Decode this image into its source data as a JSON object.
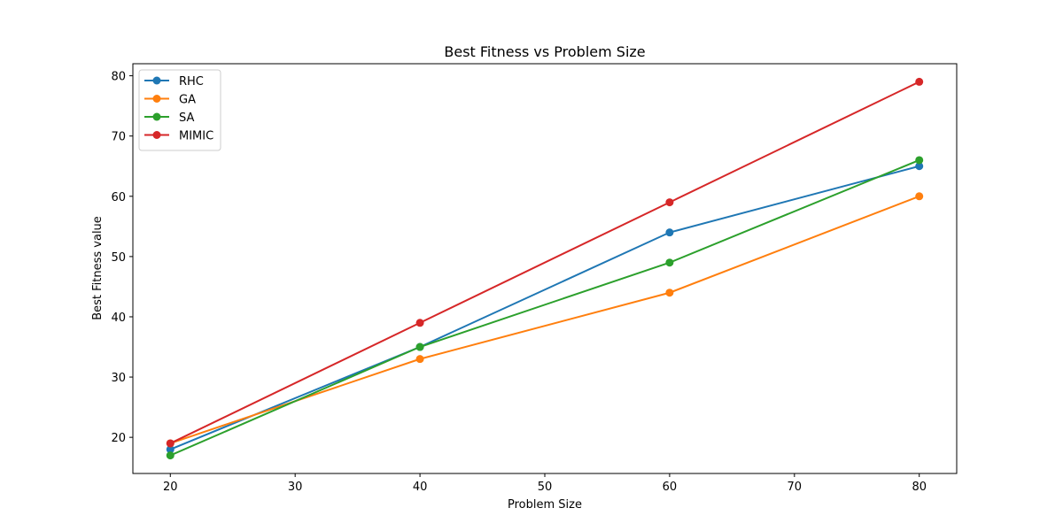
{
  "chart_data": {
    "type": "line",
    "title": "Best Fitness vs Problem Size",
    "xlabel": "Problem Size",
    "ylabel": "Best Fitness value",
    "x": [
      20,
      40,
      60,
      80
    ],
    "xlim": [
      17,
      83
    ],
    "ylim": [
      14,
      82
    ],
    "xticks": [
      20,
      30,
      40,
      50,
      60,
      70,
      80
    ],
    "yticks": [
      20,
      30,
      40,
      50,
      60,
      70,
      80
    ],
    "grid": false,
    "legend_position": "top-left",
    "series": [
      {
        "name": "RHC",
        "color": "#1f77b4",
        "values": [
          18,
          35,
          54,
          65
        ]
      },
      {
        "name": "GA",
        "color": "#ff7f0e",
        "values": [
          19,
          33,
          44,
          60
        ]
      },
      {
        "name": "SA",
        "color": "#2ca02c",
        "values": [
          17,
          35,
          49,
          66
        ]
      },
      {
        "name": "MIMIC",
        "color": "#d62728",
        "values": [
          19,
          39,
          59,
          79
        ]
      }
    ]
  }
}
